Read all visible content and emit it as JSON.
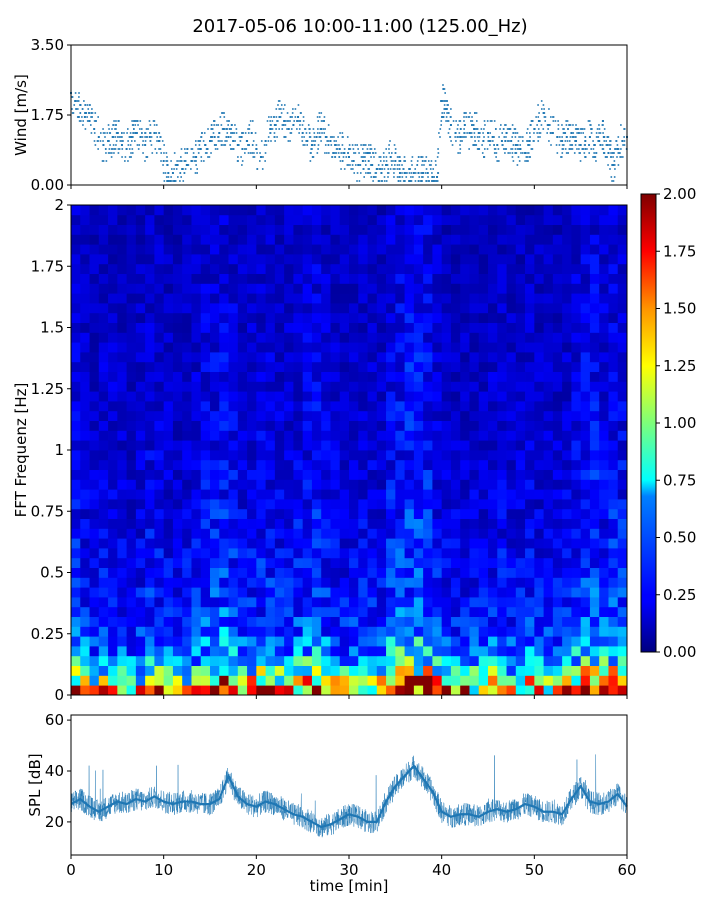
{
  "title": "2017-05-06 10:00-11:00 (125.00_Hz)",
  "chart_data": [
    {
      "type": "scatter",
      "name": "wind",
      "ylabel": "Wind [m/s]",
      "xlim": [
        0,
        60
      ],
      "ylim": [
        0,
        3.5
      ],
      "yticks": [
        0.0,
        1.75,
        3.5
      ],
      "ytick_labels": [
        "0.00",
        "1.75",
        "3.50"
      ],
      "color": "#1f77b4",
      "x": [
        0.0,
        0.5,
        1.0,
        1.5,
        2.0,
        2.5,
        3.0,
        3.5,
        4.0,
        4.5,
        5.0,
        5.5,
        6.0,
        6.5,
        7.0,
        7.5,
        8.0,
        8.5,
        9.0,
        9.5,
        10.0,
        10.5,
        11.0,
        11.5,
        12.0,
        12.5,
        13.0,
        13.5,
        14.0,
        14.5,
        15.0,
        15.5,
        16.0,
        16.5,
        17.0,
        17.5,
        18.0,
        18.5,
        19.0,
        19.5,
        20.0,
        20.5,
        21.0,
        21.5,
        22.0,
        22.5,
        23.0,
        23.5,
        24.0,
        24.5,
        25.0,
        25.5,
        26.0,
        26.5,
        27.0,
        27.5,
        28.0,
        28.5,
        29.0,
        29.5,
        30.0,
        30.5,
        31.0,
        31.5,
        32.0,
        32.5,
        33.0,
        33.5,
        34.0,
        34.5,
        35.0,
        35.5,
        36.0,
        36.5,
        37.0,
        37.5,
        38.0,
        38.5,
        39.0,
        39.5,
        40.0,
        40.5,
        41.0,
        41.5,
        42.0,
        42.5,
        43.0,
        43.5,
        44.0,
        44.5,
        45.0,
        45.5,
        46.0,
        46.5,
        47.0,
        47.5,
        48.0,
        48.5,
        49.0,
        49.5,
        50.0,
        50.5,
        51.0,
        51.5,
        52.0,
        52.5,
        53.0,
        53.5,
        54.0,
        54.5,
        55.0,
        55.5,
        56.0,
        56.5,
        57.0,
        57.5,
        58.0,
        58.5,
        59.0,
        59.5,
        60.0
      ],
      "y": [
        2.3,
        2.1,
        2.0,
        1.7,
        1.6,
        1.4,
        1.2,
        1.0,
        1.1,
        1.2,
        1.3,
        1.0,
        0.9,
        1.2,
        1.3,
        1.2,
        1.0,
        1.2,
        1.3,
        1.1,
        0.6,
        0.3,
        0.3,
        0.5,
        0.4,
        0.5,
        0.6,
        0.7,
        0.9,
        1.0,
        1.1,
        1.2,
        1.3,
        1.4,
        1.2,
        1.1,
        1.0,
        0.9,
        1.1,
        1.3,
        0.9,
        0.7,
        1.1,
        1.4,
        1.5,
        1.7,
        1.6,
        1.4,
        1.5,
        1.7,
        1.3,
        1.1,
        1.0,
        1.2,
        1.4,
        1.2,
        1.1,
        1.0,
        0.9,
        0.8,
        0.7,
        0.6,
        0.5,
        0.6,
        0.8,
        0.5,
        0.4,
        0.3,
        0.5,
        0.7,
        0.6,
        0.3,
        0.3,
        0.4,
        0.3,
        0.3,
        0.3,
        0.3,
        0.2,
        0.2,
        2.1,
        1.9,
        1.5,
        1.3,
        1.2,
        1.5,
        1.3,
        1.4,
        1.3,
        1.1,
        1.3,
        1.2,
        1.0,
        1.1,
        1.3,
        1.1,
        1.0,
        0.9,
        0.8,
        1.1,
        1.4,
        1.6,
        1.8,
        1.5,
        1.3,
        1.2,
        1.1,
        1.2,
        1.3,
        1.1,
        1.0,
        1.1,
        1.2,
        1.0,
        1.1,
        1.2,
        0.8,
        0.5,
        0.9,
        1.1,
        1.2
      ]
    },
    {
      "type": "heatmap",
      "name": "spectrogram",
      "ylabel": "FFT Frequenz [Hz]",
      "xlim": [
        0,
        60
      ],
      "ylim": [
        0,
        2
      ],
      "yticks": [
        0,
        0.25,
        0.5,
        0.75,
        1,
        1.25,
        1.5,
        1.75,
        2
      ],
      "ytick_labels": [
        "0",
        "0.25",
        "0.5",
        "0.75",
        "1",
        "1.25",
        "1.5",
        "1.75",
        "2"
      ],
      "colorbar": {
        "min": 0.0,
        "max": 2.0,
        "ticks": [
          "0.00",
          "0.25",
          "0.50",
          "0.75",
          "1.00",
          "1.25",
          "1.50",
          "1.75",
          "2.00"
        ],
        "colormap": "jet"
      },
      "freq_profile": [
        1.6,
        1.1,
        0.8,
        0.6,
        0.48,
        0.42,
        0.36,
        0.33,
        0.3,
        0.28,
        0.27,
        0.26,
        0.25,
        0.25,
        0.24,
        0.23,
        0.22,
        0.22,
        0.21,
        0.2,
        0.2,
        0.19,
        0.19,
        0.19,
        0.18,
        0.18,
        0.18,
        0.17,
        0.17,
        0.17,
        0.16,
        0.16,
        0.16,
        0.16,
        0.16,
        0.15,
        0.15,
        0.15,
        0.15,
        0.15,
        0.14,
        0.14,
        0.14,
        0.14,
        0.14,
        0.14,
        0.13,
        0.13,
        0.13,
        0.13
      ],
      "time_profile": [
        1.2,
        1.0,
        0.9,
        1.0,
        1.0,
        0.9,
        0.8,
        0.9,
        1.1,
        1.0,
        0.9,
        0.8,
        0.9,
        1.0,
        1.2,
        1.3,
        1.4,
        1.2,
        1.0,
        1.0,
        1.1,
        1.1,
        1.0,
        1.0,
        1.1,
        1.2,
        1.3,
        1.1,
        1.0,
        0.9,
        0.9,
        1.0,
        1.0,
        0.9,
        1.3,
        1.4,
        1.6,
        1.6,
        1.5,
        1.1,
        0.9,
        0.9,
        0.9,
        0.9,
        0.9,
        1.0,
        1.0,
        0.9,
        0.9,
        1.0,
        0.9,
        0.9,
        0.9,
        1.0,
        1.2,
        1.3,
        1.4,
        1.2,
        1.3,
        1.2
      ]
    },
    {
      "type": "line",
      "name": "spl",
      "xlabel": "time [min]",
      "ylabel": "SPL [dB]",
      "xlim": [
        0,
        60
      ],
      "ylim": [
        7,
        62
      ],
      "xticks": [
        0,
        10,
        20,
        30,
        40,
        50,
        60
      ],
      "xtick_labels": [
        "0",
        "10",
        "20",
        "30",
        "40",
        "50",
        "60"
      ],
      "yticks": [
        20,
        40,
        60
      ],
      "ytick_labels": [
        "20",
        "40",
        "60"
      ],
      "color": "#1f77b4",
      "x": [
        0,
        1,
        2,
        3,
        4,
        5,
        6,
        7,
        8,
        9,
        10,
        11,
        12,
        13,
        14,
        15,
        16,
        17,
        18,
        19,
        20,
        21,
        22,
        23,
        24,
        25,
        26,
        27,
        28,
        29,
        30,
        31,
        32,
        33,
        34,
        35,
        36,
        37,
        38,
        39,
        40,
        41,
        42,
        43,
        44,
        45,
        46,
        47,
        48,
        49,
        50,
        51,
        52,
        53,
        54,
        55,
        56,
        57,
        58,
        59,
        60
      ],
      "y": [
        27,
        29,
        26,
        24,
        26,
        28,
        27,
        29,
        28,
        30,
        28,
        27,
        28,
        28,
        27,
        27,
        29,
        38,
        30,
        27,
        26,
        28,
        27,
        25,
        23,
        22,
        20,
        18,
        19,
        21,
        23,
        22,
        20,
        20,
        28,
        34,
        38,
        42,
        37,
        32,
        24,
        22,
        23,
        23,
        22,
        24,
        25,
        24,
        25,
        27,
        26,
        24,
        24,
        23,
        29,
        34,
        28,
        27,
        28,
        31,
        26
      ]
    }
  ]
}
